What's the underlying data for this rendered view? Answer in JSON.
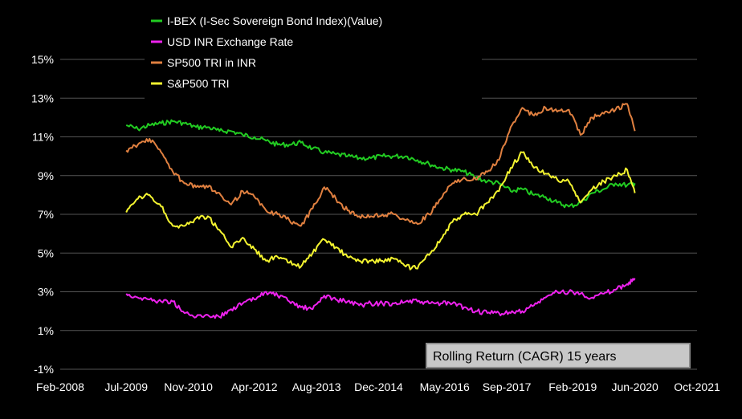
{
  "chart_data": {
    "type": "line",
    "title": "",
    "xlabel": "",
    "ylabel": "",
    "ylim": [
      -1,
      15
    ],
    "xlim": [
      "2008-02",
      "2021-10"
    ],
    "x_ticks": [
      "Feb-2008",
      "Jul-2009",
      "Nov-2010",
      "Apr-2012",
      "Aug-2013",
      "Dec-2014",
      "May-2016",
      "Sep-2017",
      "Feb-2019",
      "Jun-2020",
      "Oct-2021"
    ],
    "y_ticks": [
      "-1%",
      "1%",
      "3%",
      "5%",
      "7%",
      "9%",
      "11%",
      "13%",
      "15%"
    ],
    "grid": "horizontal",
    "legend_position": "top-left",
    "annotation": "Rolling Return (CAGR) 15 years",
    "series": [
      {
        "name": "I-BEX (I-Sec Sovereign Bond Index)(Value)",
        "color": "#22cc22",
        "x": [
          "2009-07",
          "2009-10",
          "2010-01",
          "2010-04",
          "2010-07",
          "2010-10",
          "2011-01",
          "2011-04",
          "2011-07",
          "2011-10",
          "2012-01",
          "2012-04",
          "2012-07",
          "2012-10",
          "2013-01",
          "2013-04",
          "2013-07",
          "2013-10",
          "2014-01",
          "2014-04",
          "2014-07",
          "2014-10",
          "2015-01",
          "2015-04",
          "2015-07",
          "2015-10",
          "2016-01",
          "2016-04",
          "2016-07",
          "2016-10",
          "2017-01",
          "2017-04",
          "2017-07",
          "2017-10",
          "2018-01",
          "2018-04",
          "2018-07",
          "2018-10",
          "2019-01",
          "2019-04",
          "2019-07",
          "2019-10",
          "2020-01",
          "2020-04",
          "2020-06"
        ],
        "y": [
          11.6,
          11.4,
          11.6,
          11.7,
          11.8,
          11.7,
          11.5,
          11.5,
          11.3,
          11.3,
          11.1,
          11.0,
          10.8,
          10.6,
          10.6,
          10.7,
          10.4,
          10.2,
          10.1,
          10.0,
          9.9,
          9.9,
          10.0,
          10.0,
          10.0,
          9.8,
          9.6,
          9.4,
          9.3,
          9.2,
          8.9,
          8.7,
          8.6,
          8.2,
          8.3,
          8.0,
          7.9,
          7.6,
          7.4,
          7.6,
          8.1,
          8.3,
          8.6,
          8.5,
          8.6
        ]
      },
      {
        "name": "USD INR Exchange Rate",
        "color": "#ee22ee",
        "x": [
          "2009-07",
          "2009-10",
          "2010-01",
          "2010-04",
          "2010-07",
          "2010-10",
          "2011-01",
          "2011-04",
          "2011-07",
          "2011-10",
          "2012-01",
          "2012-04",
          "2012-07",
          "2012-10",
          "2013-01",
          "2013-04",
          "2013-07",
          "2013-10",
          "2014-01",
          "2014-04",
          "2014-07",
          "2014-10",
          "2015-01",
          "2015-04",
          "2015-07",
          "2015-10",
          "2016-01",
          "2016-04",
          "2016-07",
          "2016-10",
          "2017-01",
          "2017-04",
          "2017-07",
          "2017-10",
          "2018-01",
          "2018-04",
          "2018-07",
          "2018-10",
          "2019-01",
          "2019-04",
          "2019-07",
          "2019-10",
          "2020-01",
          "2020-04",
          "2020-06"
        ],
        "y": [
          2.9,
          2.7,
          2.6,
          2.5,
          2.5,
          1.9,
          1.7,
          1.8,
          1.7,
          2.1,
          2.4,
          2.6,
          3.0,
          2.8,
          2.5,
          2.2,
          2.1,
          2.8,
          2.6,
          2.5,
          2.3,
          2.4,
          2.4,
          2.4,
          2.5,
          2.5,
          2.4,
          2.4,
          2.4,
          2.2,
          2.0,
          1.9,
          1.9,
          1.9,
          2.0,
          2.3,
          2.7,
          3.0,
          3.0,
          2.9,
          2.7,
          2.9,
          3.1,
          3.4,
          3.7
        ]
      },
      {
        "name": "SP500 TRI in INR",
        "color": "#e08040",
        "x": [
          "2009-07",
          "2009-10",
          "2010-01",
          "2010-04",
          "2010-07",
          "2010-10",
          "2011-01",
          "2011-04",
          "2011-07",
          "2011-10",
          "2012-01",
          "2012-04",
          "2012-07",
          "2012-10",
          "2013-01",
          "2013-04",
          "2013-07",
          "2013-10",
          "2014-01",
          "2014-04",
          "2014-07",
          "2014-10",
          "2015-01",
          "2015-04",
          "2015-07",
          "2015-10",
          "2016-01",
          "2016-04",
          "2016-07",
          "2016-10",
          "2017-01",
          "2017-04",
          "2017-07",
          "2017-10",
          "2018-01",
          "2018-04",
          "2018-07",
          "2018-10",
          "2019-01",
          "2019-04",
          "2019-07",
          "2019-10",
          "2020-01",
          "2020-04",
          "2020-06"
        ],
        "y": [
          10.3,
          10.6,
          10.9,
          10.2,
          9.2,
          8.6,
          8.4,
          8.4,
          8.1,
          7.5,
          8.2,
          7.9,
          7.2,
          7.0,
          6.7,
          6.4,
          7.3,
          8.4,
          7.8,
          7.2,
          6.9,
          6.9,
          7.0,
          7.0,
          6.7,
          6.5,
          7.0,
          7.8,
          8.6,
          8.9,
          8.8,
          9.2,
          9.8,
          11.5,
          12.5,
          12.1,
          12.5,
          12.3,
          12.4,
          11.1,
          12.0,
          12.2,
          12.4,
          12.7,
          11.3
        ]
      },
      {
        "name": "S&P500 TRI",
        "color": "#f4f430",
        "x": [
          "2009-07",
          "2009-10",
          "2010-01",
          "2010-04",
          "2010-07",
          "2010-10",
          "2011-01",
          "2011-04",
          "2011-07",
          "2011-10",
          "2012-01",
          "2012-04",
          "2012-07",
          "2012-10",
          "2013-01",
          "2013-04",
          "2013-07",
          "2013-10",
          "2014-01",
          "2014-04",
          "2014-07",
          "2014-10",
          "2015-01",
          "2015-04",
          "2015-07",
          "2015-10",
          "2016-01",
          "2016-04",
          "2016-07",
          "2016-10",
          "2017-01",
          "2017-04",
          "2017-07",
          "2017-10",
          "2018-01",
          "2018-04",
          "2018-07",
          "2018-10",
          "2019-01",
          "2019-04",
          "2019-07",
          "2019-10",
          "2020-01",
          "2020-04",
          "2020-06"
        ],
        "y": [
          7.1,
          7.8,
          8.0,
          7.4,
          6.4,
          6.4,
          6.8,
          6.9,
          6.2,
          5.3,
          5.8,
          5.2,
          4.6,
          4.8,
          4.5,
          4.3,
          5.0,
          5.7,
          5.3,
          4.8,
          4.6,
          4.6,
          4.6,
          4.7,
          4.3,
          4.2,
          4.9,
          5.7,
          6.6,
          7.0,
          7.0,
          7.6,
          8.2,
          9.4,
          10.2,
          9.4,
          9.1,
          8.8,
          8.7,
          7.6,
          8.3,
          8.7,
          9.0,
          9.3,
          8.1
        ]
      }
    ]
  }
}
